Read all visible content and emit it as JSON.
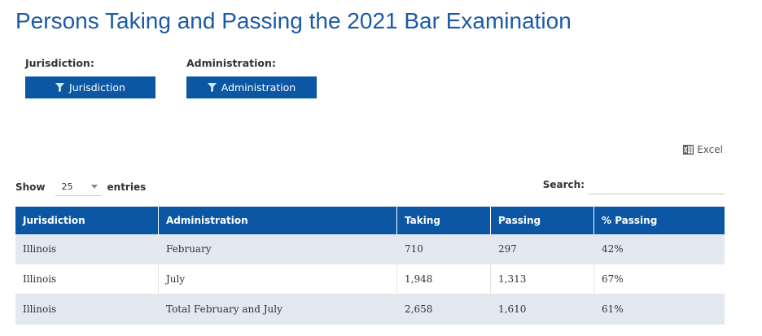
{
  "page": {
    "title": "Persons Taking and Passing the 2021 Bar Examination"
  },
  "filters": {
    "jurisdiction": {
      "label": "Jurisdiction:",
      "button_label": "Jurisdiction",
      "icon": "filter-icon"
    },
    "administration": {
      "label": "Administration:",
      "button_label": "Administration",
      "icon": "filter-icon"
    }
  },
  "export": {
    "excel_label": "Excel",
    "icon": "excel-icon"
  },
  "length": {
    "show_label": "Show",
    "value": "25",
    "entries_label": "entries"
  },
  "search": {
    "label": "Search:",
    "value": ""
  },
  "table": {
    "headers": [
      "Jurisdiction",
      "Administration",
      "Taking",
      "Passing",
      "% Passing"
    ],
    "rows": [
      [
        "Illinois",
        "February",
        "710",
        "297",
        "42%"
      ],
      [
        "Illinois",
        "July",
        "1,948",
        "1,313",
        "67%"
      ],
      [
        "Illinois",
        "Total February and July",
        "2,658",
        "1,610",
        "61%"
      ]
    ]
  },
  "colors": {
    "title": "#1c5aa6",
    "accent": "#0b57a4",
    "row_stripe": "#e3e9f1"
  }
}
